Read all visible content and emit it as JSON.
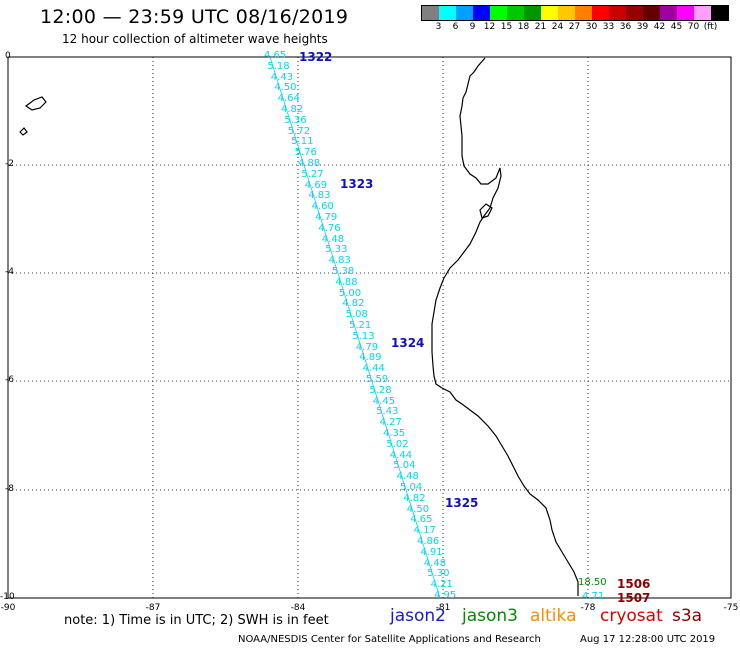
{
  "header": {
    "title": "12:00 — 23:59 UTC 08/16/2019",
    "subtitle": "12 hour collection of altimeter wave heights"
  },
  "legend": {
    "colors": [
      "#808080",
      "#00ffff",
      "#00a0ff",
      "#0000ff",
      "#00ff00",
      "#00c800",
      "#009600",
      "#ffff00",
      "#ffc800",
      "#ff8000",
      "#ff0000",
      "#c80000",
      "#960000",
      "#640000",
      "#a000a0",
      "#ff00ff",
      "#ffa0ff",
      "#000000"
    ],
    "labels": [
      "3",
      "6",
      "9",
      "12",
      "15",
      "18",
      "21",
      "24",
      "27",
      "30",
      "33",
      "36",
      "39",
      "42",
      "45",
      "70",
      "(ft)"
    ]
  },
  "axes": {
    "y_ticks": [
      "0",
      "-2",
      "-4",
      "-6",
      "-8",
      "-10"
    ],
    "x_ticks": [
      "-90",
      "-87",
      "-84",
      "-81",
      "-78",
      "-75"
    ]
  },
  "passes": [
    "1322",
    "1323",
    "1324",
    "1325"
  ],
  "track_values": [
    "4.65",
    "5.18",
    "4.43",
    "4.50",
    "4.64",
    "4.82",
    "5.36",
    "5.72",
    "5.11",
    "5.76",
    "4.88",
    "5.27",
    "4.69",
    "4.83",
    "4.60",
    "4.79",
    "4.76",
    "4.48",
    "5.33",
    "4.83",
    "5.38",
    "4.88",
    "5.00",
    "4.82",
    "5.08",
    "5.21",
    "5.13",
    "4.79",
    "4.89",
    "4.44",
    "5.59",
    "5.28",
    "4.45",
    "5.43",
    "4.27",
    "4.35",
    "5.02",
    "4.44",
    "5.04",
    "4.48",
    "5.04",
    "4.82",
    "4.50",
    "4.65",
    "4.17",
    "4.86",
    "4.91",
    "4.48",
    "5.30",
    "4.21",
    "4.95"
  ],
  "coast_points": {
    "jason3_value": "18.50",
    "cyan_value": "4.71",
    "s3a_pass_1": "1506",
    "s3a_pass_2": "1507"
  },
  "note": "note: 1) Time is in UTC; 2) SWH is in feet",
  "satellites": [
    {
      "name": "jason2",
      "color": "#1a1acc"
    },
    {
      "name": "jason3",
      "color": "#008a00"
    },
    {
      "name": "altika",
      "color": "#ff8c00"
    },
    {
      "name": "cryosat",
      "color": "#e00000"
    },
    {
      "name": "s3a",
      "color": "#8b0000"
    }
  ],
  "footer": {
    "credit": "NOAA/NESDIS Center for Satellite Applications and Research",
    "timestamp": "Aug 17 12:28:00 UTC 2019"
  }
}
